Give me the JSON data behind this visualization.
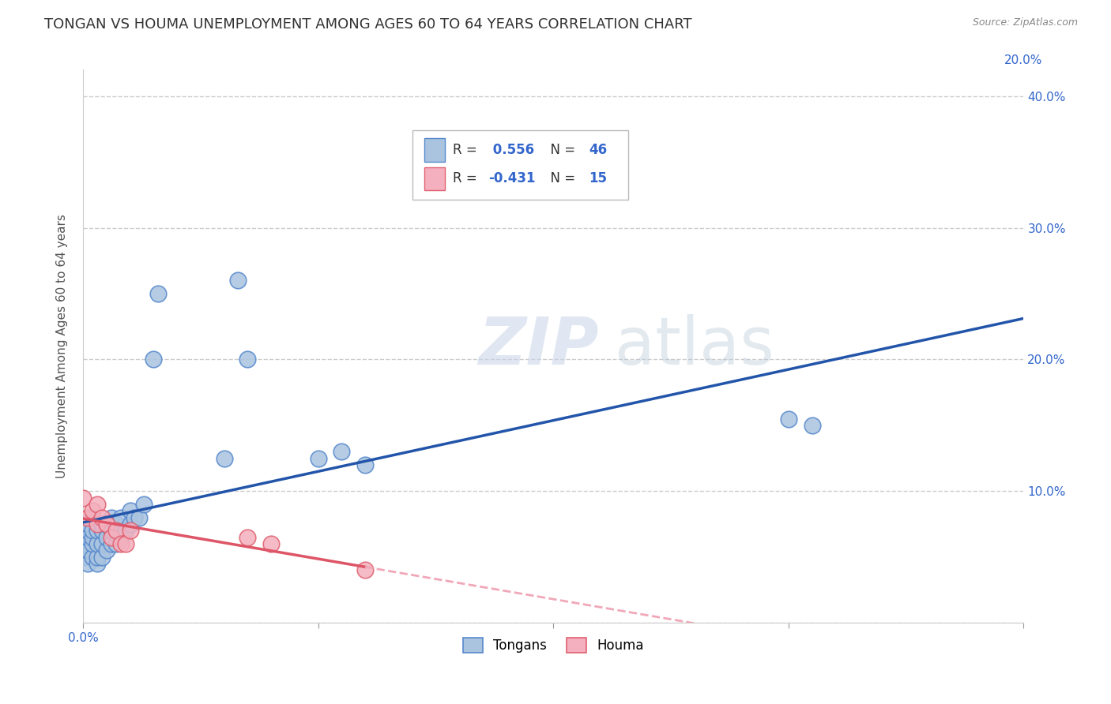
{
  "title": "TONGAN VS HOUMA UNEMPLOYMENT AMONG AGES 60 TO 64 YEARS CORRELATION CHART",
  "source": "Source: ZipAtlas.com",
  "ylabel": "Unemployment Among Ages 60 to 64 years",
  "xlim": [
    0.0,
    0.2
  ],
  "ylim": [
    0.0,
    0.42
  ],
  "xticks": [
    0.0,
    0.05,
    0.1,
    0.15,
    0.2
  ],
  "yticks": [
    0.0,
    0.1,
    0.2,
    0.3,
    0.4
  ],
  "xtick_labels_left": [
    "0.0%",
    "",
    "",
    "",
    ""
  ],
  "xtick_labels_right": [
    "",
    "",
    "",
    "",
    "20.0%"
  ],
  "ytick_labels_right": [
    "",
    "10.0%",
    "20.0%",
    "30.0%",
    "40.0%"
  ],
  "tongan_color": "#aac4e0",
  "houma_color": "#f4b0be",
  "tongan_edge_color": "#5588cc",
  "houma_edge_color": "#e06070",
  "tongan_line_color": "#2255aa",
  "houma_line_color": "#dd5566",
  "houma_line_dash_color": "#f0a8b8",
  "background_color": "#ffffff",
  "grid_color": "#cccccc",
  "R_tongan": 0.556,
  "N_tongan": 46,
  "R_houma": -0.431,
  "N_houma": 15,
  "legend_label_tongan": "Tongans",
  "legend_label_houma": "Houma",
  "tongan_x": [
    0.0,
    0.0,
    0.001,
    0.001,
    0.001,
    0.001,
    0.001,
    0.002,
    0.002,
    0.002,
    0.002,
    0.002,
    0.003,
    0.003,
    0.003,
    0.003,
    0.004,
    0.004,
    0.004,
    0.004,
    0.005,
    0.005,
    0.005,
    0.006,
    0.006,
    0.006,
    0.007,
    0.007,
    0.008,
    0.008,
    0.009,
    0.01,
    0.01,
    0.011,
    0.012,
    0.013,
    0.015,
    0.016,
    0.03,
    0.033,
    0.035,
    0.05,
    0.055,
    0.06,
    0.15,
    0.155
  ],
  "tongan_y": [
    0.05,
    0.06,
    0.045,
    0.055,
    0.065,
    0.07,
    0.075,
    0.05,
    0.06,
    0.065,
    0.07,
    0.08,
    0.045,
    0.05,
    0.06,
    0.07,
    0.05,
    0.06,
    0.07,
    0.075,
    0.055,
    0.065,
    0.075,
    0.06,
    0.07,
    0.08,
    0.06,
    0.075,
    0.065,
    0.08,
    0.07,
    0.075,
    0.085,
    0.08,
    0.08,
    0.09,
    0.2,
    0.25,
    0.125,
    0.26,
    0.2,
    0.125,
    0.13,
    0.12,
    0.155,
    0.15
  ],
  "houma_x": [
    0.0,
    0.001,
    0.002,
    0.003,
    0.003,
    0.004,
    0.005,
    0.006,
    0.007,
    0.008,
    0.009,
    0.01,
    0.035,
    0.04,
    0.06
  ],
  "houma_y": [
    0.095,
    0.08,
    0.085,
    0.075,
    0.09,
    0.08,
    0.075,
    0.065,
    0.07,
    0.06,
    0.06,
    0.07,
    0.065,
    0.06,
    0.04
  ],
  "watermark_zip": "ZIP",
  "watermark_atlas": "atlas",
  "title_fontsize": 13,
  "axis_label_fontsize": 11,
  "tick_fontsize": 11,
  "legend_fontsize": 12
}
